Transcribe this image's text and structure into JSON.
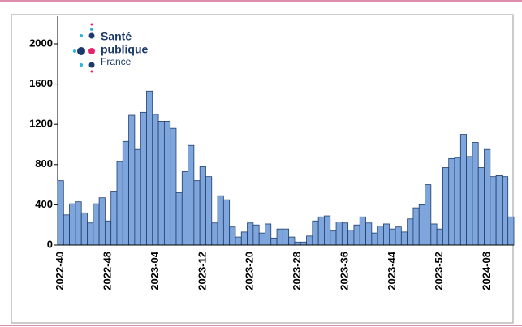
{
  "chart_data": {
    "type": "bar",
    "logo": [
      "Santé",
      "publique",
      "France"
    ],
    "categories": [
      "2022-40",
      null,
      null,
      null,
      null,
      null,
      null,
      null,
      "2022-48",
      null,
      null,
      null,
      null,
      null,
      null,
      null,
      "2023-04",
      null,
      null,
      null,
      null,
      null,
      null,
      null,
      "2023-12",
      null,
      null,
      null,
      null,
      null,
      null,
      null,
      "2023-20",
      null,
      null,
      null,
      null,
      null,
      null,
      null,
      "2023-28",
      null,
      null,
      null,
      null,
      null,
      null,
      null,
      "2023-36",
      null,
      null,
      null,
      null,
      null,
      null,
      null,
      "2023-44",
      null,
      null,
      null,
      null,
      null,
      null,
      null,
      "2023-52",
      null,
      null,
      null,
      null,
      null,
      null,
      null,
      "2024-08",
      null,
      null,
      null,
      null
    ],
    "values": [
      640,
      300,
      410,
      430,
      320,
      220,
      410,
      470,
      240,
      530,
      830,
      1030,
      1290,
      950,
      1320,
      1530,
      1300,
      1230,
      1230,
      1160,
      520,
      730,
      990,
      640,
      780,
      680,
      220,
      490,
      450,
      180,
      80,
      130,
      220,
      200,
      120,
      210,
      70,
      160,
      160,
      80,
      30,
      30,
      90,
      240,
      280,
      290,
      140,
      230,
      220,
      150,
      200,
      280,
      220,
      120,
      190,
      210,
      160,
      180,
      130,
      260,
      370,
      400,
      600,
      210,
      160,
      770,
      860,
      870,
      1100,
      880,
      1020,
      770,
      950,
      680,
      690,
      680,
      280
    ],
    "color": "#7ea6dc",
    "ylim": [
      0,
      2000
    ],
    "yticks": [
      0,
      400,
      800,
      1200,
      1600,
      2000
    ]
  }
}
